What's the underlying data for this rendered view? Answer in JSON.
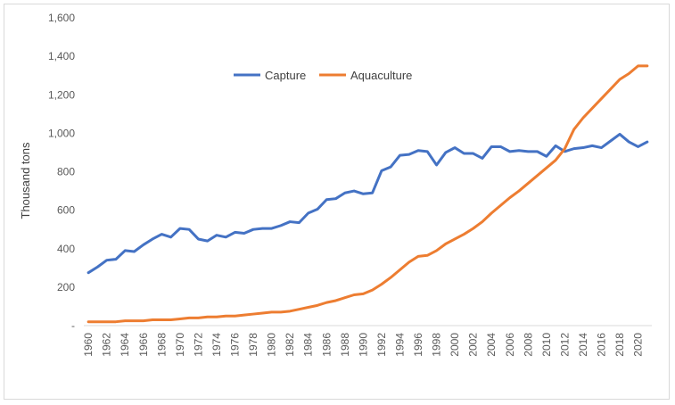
{
  "chart_data": {
    "type": "line",
    "title": "",
    "xlabel": "",
    "ylabel": "Thousand tons",
    "ylim": [
      0,
      1600
    ],
    "yticks": [
      0,
      200,
      400,
      600,
      800,
      1000,
      1200,
      1400,
      1600
    ],
    "ytick_labels": [
      "-",
      "200",
      "400",
      "600",
      "800",
      "1,000",
      "1,200",
      "1,400",
      "1,600"
    ],
    "xlim": [
      1960,
      2021
    ],
    "xtick_labels": [
      "1960",
      "1962",
      "1964",
      "1966",
      "1968",
      "1970",
      "1972",
      "1974",
      "1976",
      "1978",
      "1980",
      "1982",
      "1984",
      "1986",
      "1988",
      "1990",
      "1992",
      "1994",
      "1996",
      "1998",
      "2000",
      "2002",
      "2004",
      "2006",
      "2008",
      "2010",
      "2012",
      "2014",
      "2016",
      "2018",
      "2020"
    ],
    "grid": false,
    "legend_position": "upper-center",
    "x": [
      1960,
      1961,
      1962,
      1963,
      1964,
      1965,
      1966,
      1967,
      1968,
      1969,
      1970,
      1971,
      1972,
      1973,
      1974,
      1975,
      1976,
      1977,
      1978,
      1979,
      1980,
      1981,
      1982,
      1983,
      1984,
      1985,
      1986,
      1987,
      1988,
      1989,
      1990,
      1991,
      1992,
      1993,
      1994,
      1995,
      1996,
      1997,
      1998,
      1999,
      2000,
      2001,
      2002,
      2003,
      2004,
      2005,
      2006,
      2007,
      2008,
      2009,
      2010,
      2011,
      2012,
      2013,
      2014,
      2015,
      2016,
      2017,
      2018,
      2019,
      2020,
      2021
    ],
    "series": [
      {
        "name": "Capture",
        "color": "#4472c4",
        "values": [
          275,
          305,
          340,
          345,
          390,
          385,
          420,
          450,
          475,
          460,
          505,
          500,
          450,
          440,
          470,
          460,
          485,
          480,
          500,
          505,
          505,
          520,
          540,
          535,
          585,
          605,
          655,
          660,
          690,
          700,
          685,
          690,
          805,
          825,
          885,
          890,
          910,
          905,
          835,
          900,
          925,
          895,
          895,
          870,
          930,
          930,
          905,
          910,
          905,
          905,
          880,
          935,
          905,
          920,
          925,
          935,
          925,
          960,
          995,
          955,
          930,
          955
        ]
      },
      {
        "name": "Aquaculture",
        "color": "#ed7d31",
        "values": [
          20,
          20,
          20,
          20,
          25,
          25,
          25,
          30,
          30,
          30,
          35,
          40,
          40,
          45,
          45,
          50,
          50,
          55,
          60,
          65,
          70,
          70,
          75,
          85,
          95,
          105,
          120,
          130,
          145,
          160,
          165,
          185,
          215,
          250,
          290,
          330,
          360,
          365,
          390,
          425,
          450,
          475,
          505,
          540,
          585,
          625,
          665,
          700,
          740,
          780,
          820,
          860,
          920,
          1020,
          1080,
          1130,
          1180,
          1230,
          1280,
          1310,
          1350,
          1350
        ]
      }
    ]
  }
}
